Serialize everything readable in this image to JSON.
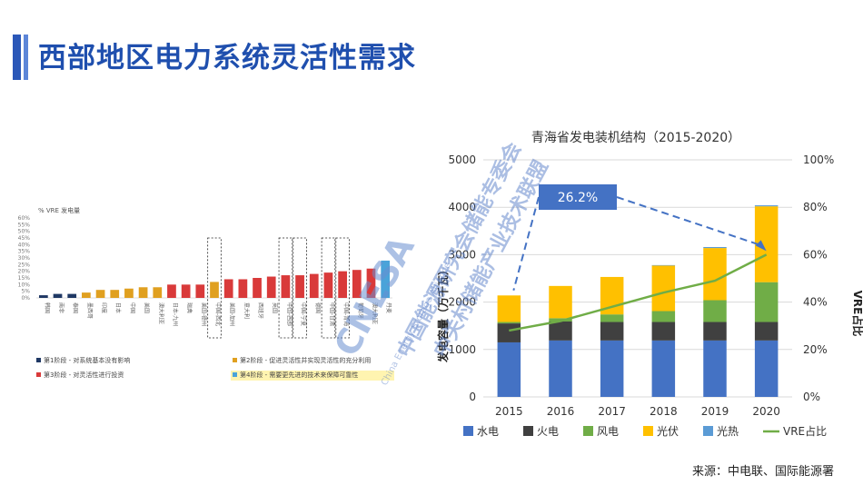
{
  "page": {
    "title": "西部地区电力系统灵活性需求",
    "source": "来源：中电联、国际能源署"
  },
  "watermark": {
    "brand": "CNESA",
    "line1": "中国能源研究会储能专委会",
    "line2": "中关村储能产业技术联盟",
    "line3": "China Energy Storage Alliance"
  },
  "chart_data": [
    {
      "type": "bar",
      "title": "% VRE 发电量",
      "categories": [
        "韩国",
        "南非",
        "泰国",
        "墨西哥",
        "印度",
        "日本",
        "中国",
        "美国",
        "澳大利亚",
        "日本-九州",
        "瑞典",
        "美国-德州",
        "中国-西北",
        "美国-加州",
        "意大利",
        "西班牙",
        "英国",
        "中国-西部",
        "中国-宁夏",
        "德国",
        "中国-甘肃",
        "中国-青海",
        "葡萄牙",
        "澳大利亚",
        "丹麦"
      ],
      "values": [
        2,
        3,
        3,
        4,
        6,
        6,
        7,
        8,
        8,
        10,
        10,
        10,
        12,
        14,
        14,
        15,
        16,
        17,
        17,
        18,
        19,
        20,
        21,
        22,
        28
      ],
      "phases": [
        1,
        1,
        1,
        2,
        2,
        2,
        2,
        2,
        2,
        3,
        3,
        3,
        2,
        3,
        3,
        3,
        3,
        3,
        3,
        3,
        3,
        3,
        3,
        3,
        4
      ],
      "ylim": [
        0,
        60
      ],
      "ytick_labels": [
        "0%",
        "5%",
        "10%",
        "15%",
        "20%",
        "25%",
        "30%",
        "35%",
        "40%",
        "45%",
        "50%",
        "55%",
        "60%"
      ],
      "legend": [
        {
          "label": "第1阶段 - 对系统基本没有影响",
          "color": "#1f3864"
        },
        {
          "label": "第2阶段 - 促进灵活性并实现灵活性的充分利用",
          "color": "#e0a020"
        },
        {
          "label": "第3阶段 - 对灵活性进行投资",
          "color": "#d93a3a"
        },
        {
          "label": "第4阶段 - 需要更先进的技术来保障可靠性",
          "color": "#4aa3d9"
        }
      ],
      "colors": {
        "phase1": "#1f3864",
        "phase2": "#e0a020",
        "phase3": "#d93a3a",
        "phase4": "#4aa3d9"
      }
    },
    {
      "type": "bar",
      "title": "青海省发电装机结构（2015-2020）",
      "categories": [
        "2015",
        "2016",
        "2017",
        "2018",
        "2019",
        "2020"
      ],
      "series": [
        {
          "name": "水电",
          "color": "#4472c4",
          "values": [
            1150,
            1190,
            1190,
            1190,
            1190,
            1190
          ]
        },
        {
          "name": "火电",
          "color": "#404040",
          "values": [
            400,
            400,
            390,
            390,
            390,
            390
          ]
        },
        {
          "name": "风电",
          "color": "#70ad47",
          "values": [
            30,
            70,
            160,
            230,
            460,
            840
          ]
        },
        {
          "name": "光伏",
          "color": "#ffc000",
          "values": [
            560,
            680,
            790,
            960,
            1100,
            1600
          ]
        },
        {
          "name": "光热",
          "color": "#5b9bd5",
          "values": [
            0,
            0,
            0,
            10,
            21,
            21
          ]
        }
      ],
      "line": {
        "name": "VRE占比",
        "color": "#70ad47",
        "values": [
          28,
          32,
          38,
          44,
          49,
          60
        ]
      },
      "ylabel": "发电容量（万千瓦）",
      "ylabel_right": "VRE占比",
      "ylim": [
        0,
        5000
      ],
      "ylim_right": [
        0,
        100
      ],
      "yticks": [
        "0",
        "1000",
        "2000",
        "3000",
        "4000",
        "5000"
      ],
      "yticks_right": [
        "0%",
        "20%",
        "40%",
        "60%",
        "80%",
        "100%"
      ],
      "annotation": "26.2%"
    }
  ]
}
